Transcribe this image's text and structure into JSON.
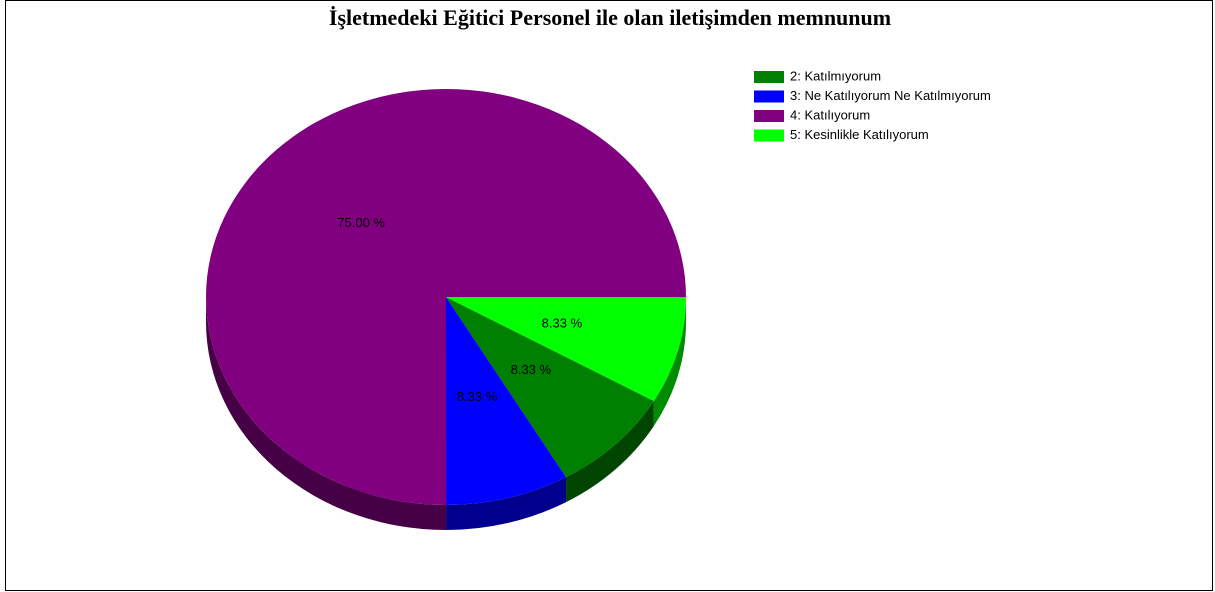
{
  "chart_data": {
    "type": "pie",
    "title": "İşletmedeki Eğitici Personel ile olan iletişimden memnunum",
    "categories": [
      "2: Katılmıyorum",
      "3: Ne Katılıyorum Ne Katılmıyorum",
      "4: Katılıyorum",
      "5: Kesinlikle Katılıyorum"
    ],
    "values": [
      8.33,
      8.33,
      75,
      8.33
    ],
    "value_labels": [
      "8.33 %",
      "8.33 %",
      "75.00 %",
      "8.33 %"
    ],
    "colors": [
      "#008000",
      "#0000ff",
      "#800080",
      "#00ff00"
    ],
    "legend": "top-right"
  }
}
